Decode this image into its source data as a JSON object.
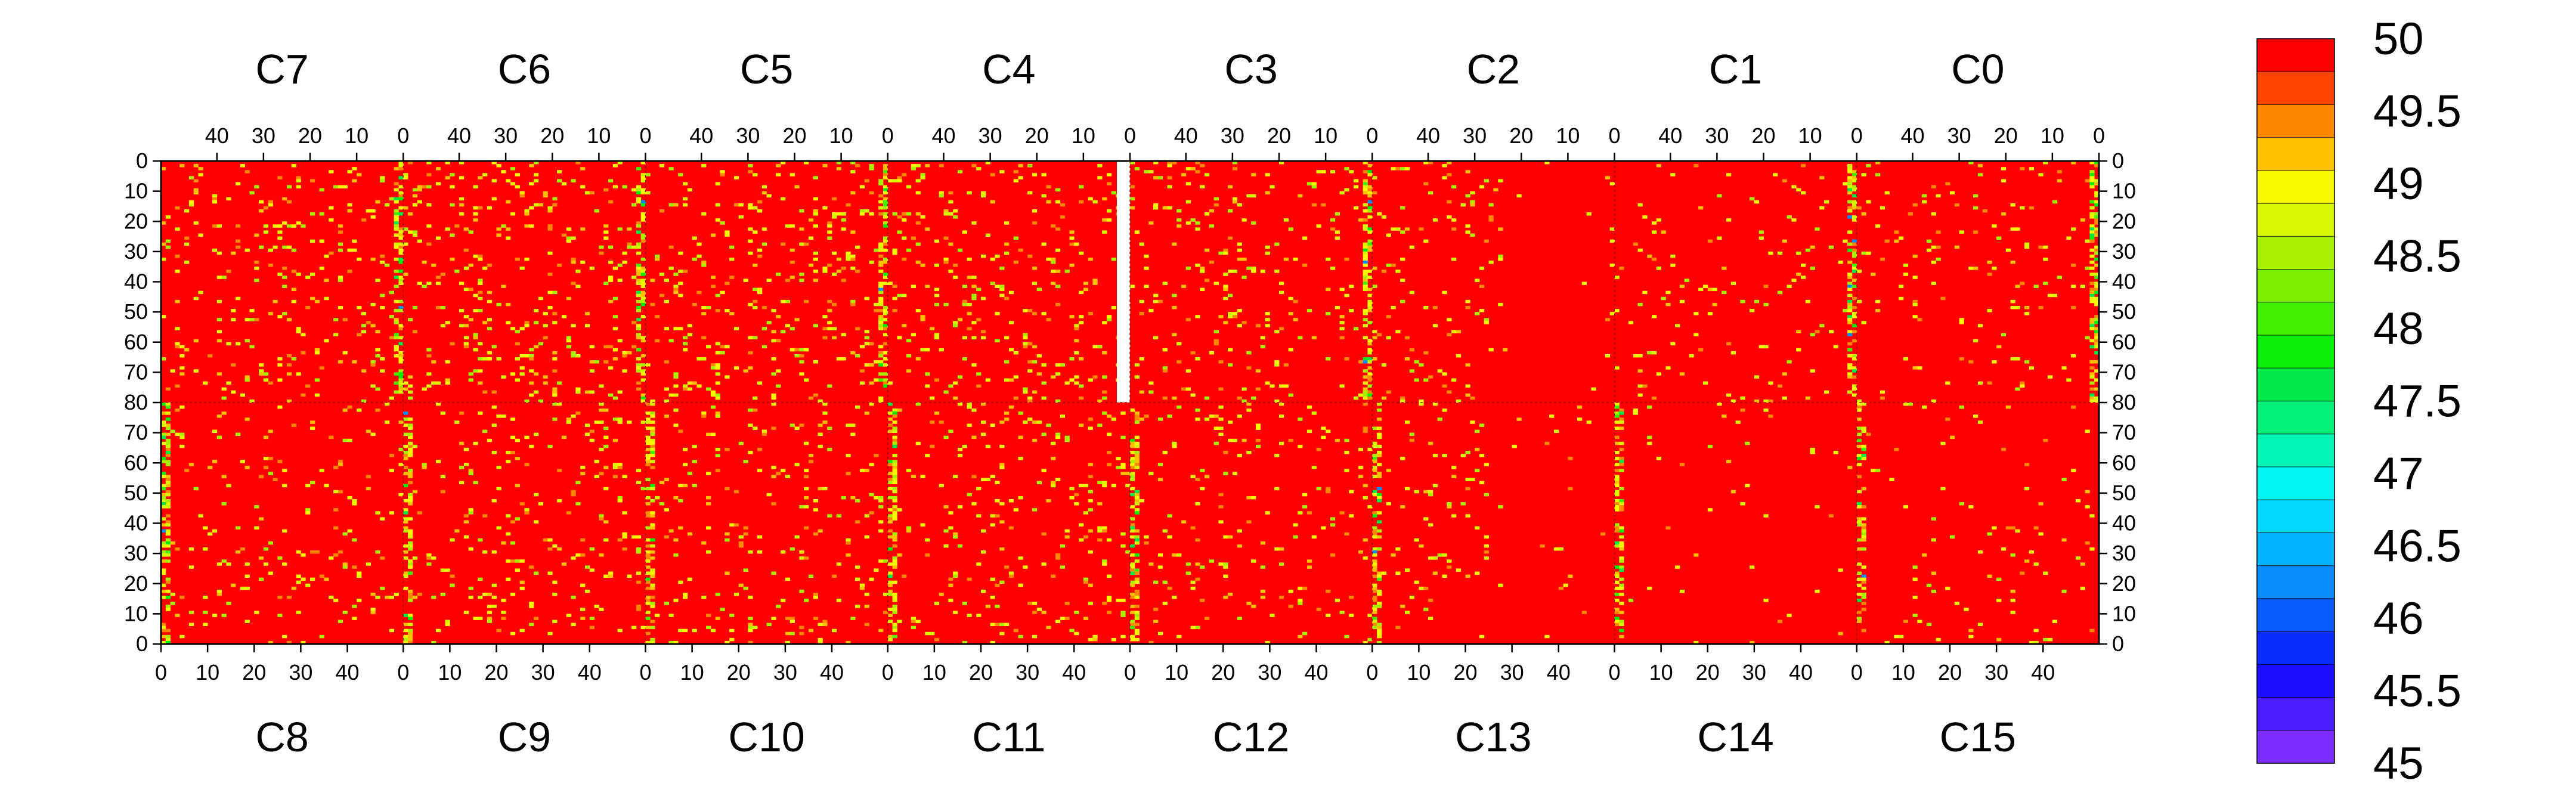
{
  "chart_data": {
    "type": "heatmap",
    "title": "",
    "xlabel": "",
    "ylabel": "",
    "color_range": [
      45,
      50
    ],
    "colorbar": {
      "levels": [
        45,
        45.25,
        45.5,
        45.75,
        46,
        46.25,
        46.5,
        46.75,
        47,
        47.25,
        47.5,
        47.75,
        48,
        48.25,
        48.5,
        48.75,
        49,
        49.25,
        49.5,
        49.75,
        50
      ],
      "tick_labels": [
        "50",
        "49.5",
        "49",
        "48.5",
        "48",
        "47.5",
        "47",
        "46.5",
        "46",
        "45.5",
        "45"
      ],
      "colors": [
        "#7b2cff",
        "#4a1dff",
        "#1a0dff",
        "#0a2cff",
        "#0a5cff",
        "#0a8cff",
        "#00b2ff",
        "#00d8ff",
        "#00f6ee",
        "#00f6b4",
        "#00f07a",
        "#00e84a",
        "#08f008",
        "#40f000",
        "#7af000",
        "#a8f000",
        "#d8f800",
        "#f8f800",
        "#ffc000",
        "#ff8800",
        "#ff4400",
        "#ff0000"
      ]
    },
    "top_chips": [
      "C7",
      "C6",
      "C5",
      "C4",
      "C3",
      "C2",
      "C1",
      "C0"
    ],
    "bottom_chips": [
      "C8",
      "C9",
      "C10",
      "C11",
      "C12",
      "C13",
      "C14",
      "C15"
    ],
    "top_col_ticks": [
      "40",
      "30",
      "20",
      "10",
      "0"
    ],
    "bottom_col_ticks": [
      "0",
      "10",
      "20",
      "30",
      "40"
    ],
    "top_row_ticks": [
      "0",
      "10",
      "20",
      "30",
      "40",
      "50",
      "60",
      "70",
      "80"
    ],
    "bottom_row_ticks": [
      "70",
      "60",
      "50",
      "40",
      "30",
      "20",
      "10",
      "0"
    ],
    "columns_per_chip": 52,
    "rows_per_half": 80,
    "dominant_value": 50,
    "masked_region": "right edge of C4 / C12 boundary, top half"
  }
}
